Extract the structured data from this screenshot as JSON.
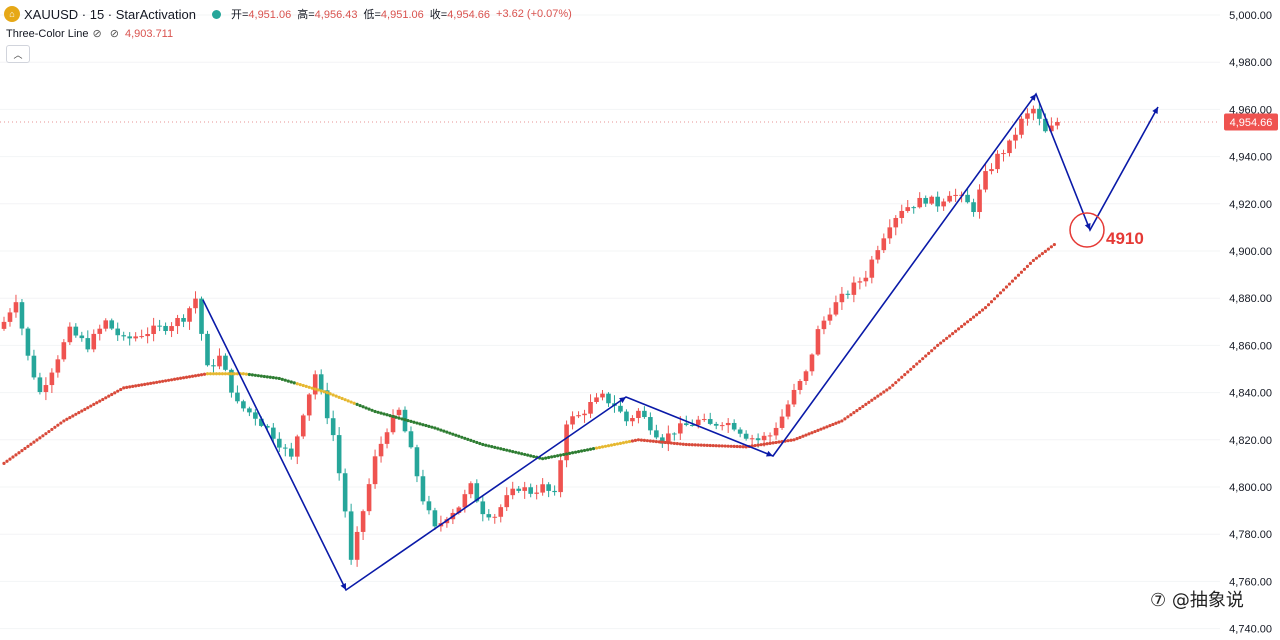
{
  "header": {
    "symbol": "XAUUSD · 15 · StarActivation",
    "logo_glyph": "⌂",
    "open_label": "开=",
    "open_value": "4,951.06",
    "high_label": "高=",
    "high_value": "4,956.43",
    "low_label": "低=",
    "low_value": "4,951.06",
    "close_label": "收=",
    "close_value": "4,954.66",
    "change": "+3.62 (+0.07%)"
  },
  "indicator": {
    "name": "Three-Color Line",
    "icon1": "⊘",
    "icon2": "⊘",
    "value": "4,903.711"
  },
  "collapse_glyph": "︿",
  "annotation_label": "4910",
  "watermark": "⑦ @抽象说",
  "colors": {
    "up": "#26a69a",
    "down": "#ef5350",
    "wave": "#0a1aa8",
    "circle": "#e53935",
    "green_dot": "#2e7d32",
    "yellow_dot": "#e6b830",
    "red_dot": "#d84a3a"
  },
  "chart_data": {
    "type": "candlestick",
    "yaxis_ticks": [
      "5,000.00",
      "4,980.00",
      "4,960.00",
      "4,940.00",
      "4,920.00",
      "4,900.00",
      "4,880.00",
      "4,860.00",
      "4,840.00",
      "4,820.00",
      "4,800.00",
      "4,780.00",
      "4,760.00",
      "4,740.00"
    ],
    "ylim": [
      4740,
      5000
    ],
    "last_price": 4954.66,
    "last_price_label": "4,954.66",
    "anchors": [
      [
        0,
        4870
      ],
      [
        2,
        4880
      ],
      [
        4,
        4855
      ],
      [
        6,
        4840
      ],
      [
        8,
        4850
      ],
      [
        11,
        4866
      ],
      [
        14,
        4860
      ],
      [
        17,
        4870
      ],
      [
        20,
        4862
      ],
      [
        23,
        4865
      ],
      [
        27,
        4868
      ],
      [
        30,
        4872
      ],
      [
        32,
        4880
      ],
      [
        34,
        4850
      ],
      [
        36,
        4855
      ],
      [
        39,
        4835
      ],
      [
        42,
        4830
      ],
      [
        45,
        4822
      ],
      [
        48,
        4812
      ],
      [
        50,
        4832
      ],
      [
        52,
        4848
      ],
      [
        55,
        4822
      ],
      [
        57,
        4790
      ],
      [
        58,
        4768
      ],
      [
        60,
        4790
      ],
      [
        62,
        4812
      ],
      [
        64,
        4825
      ],
      [
        66,
        4832
      ],
      [
        68,
        4815
      ],
      [
        70,
        4795
      ],
      [
        72,
        4782
      ],
      [
        74,
        4788
      ],
      [
        76,
        4792
      ],
      [
        78,
        4800
      ],
      [
        80,
        4790
      ],
      [
        82,
        4788
      ],
      [
        84,
        4795
      ],
      [
        86,
        4800
      ],
      [
        88,
        4798
      ],
      [
        90,
        4800
      ],
      [
        92,
        4796
      ],
      [
        94,
        4828
      ],
      [
        96,
        4830
      ],
      [
        98,
        4835
      ],
      [
        100,
        4838
      ],
      [
        102,
        4835
      ],
      [
        104,
        4828
      ],
      [
        106,
        4832
      ],
      [
        108,
        4826
      ],
      [
        110,
        4820
      ],
      [
        112,
        4824
      ],
      [
        114,
        4826
      ],
      [
        116,
        4828
      ],
      [
        118,
        4826
      ],
      [
        120,
        4828
      ],
      [
        122,
        4826
      ],
      [
        124,
        4822
      ],
      [
        126,
        4820
      ],
      [
        128,
        4822
      ],
      [
        130,
        4830
      ],
      [
        132,
        4840
      ],
      [
        134,
        4848
      ],
      [
        136,
        4866
      ],
      [
        138,
        4875
      ],
      [
        140,
        4880
      ],
      [
        142,
        4885
      ],
      [
        144,
        4890
      ],
      [
        146,
        4902
      ],
      [
        148,
        4912
      ],
      [
        150,
        4918
      ],
      [
        152,
        4920
      ],
      [
        154,
        4922
      ],
      [
        156,
        4920
      ],
      [
        158,
        4925
      ],
      [
        160,
        4922
      ],
      [
        162,
        4918
      ],
      [
        164,
        4932
      ],
      [
        166,
        4940
      ],
      [
        168,
        4945
      ],
      [
        170,
        4955
      ],
      [
        172,
        4960
      ],
      [
        174,
        4950
      ],
      [
        175,
        4952
      ],
      [
        176,
        4954.66
      ]
    ],
    "line_anchors": [
      [
        0,
        4810
      ],
      [
        10,
        4828
      ],
      [
        20,
        4842
      ],
      [
        34,
        4848
      ],
      [
        40,
        4848
      ],
      [
        46,
        4846
      ],
      [
        54,
        4840
      ],
      [
        62,
        4832
      ],
      [
        72,
        4825
      ],
      [
        80,
        4818
      ],
      [
        90,
        4812
      ],
      [
        98,
        4816
      ],
      [
        106,
        4820
      ],
      [
        114,
        4818
      ],
      [
        124,
        4817
      ],
      [
        132,
        4820
      ],
      [
        140,
        4828
      ],
      [
        148,
        4842
      ],
      [
        156,
        4860
      ],
      [
        164,
        4876
      ],
      [
        172,
        4896
      ],
      [
        176,
        4903.7
      ]
    ],
    "line_colors": [
      [
        0,
        33,
        "red"
      ],
      [
        33,
        40,
        "yellow"
      ],
      [
        40,
        48,
        "green"
      ],
      [
        48,
        58,
        "yellow"
      ],
      [
        58,
        69,
        "green"
      ],
      [
        69,
        90,
        "green"
      ],
      [
        90,
        98,
        "green"
      ],
      [
        98,
        104,
        "yellow"
      ],
      [
        104,
        176,
        "red"
      ]
    ],
    "wave_path": [
      [
        203,
        300
      ],
      [
        346,
        590
      ],
      [
        626,
        397
      ],
      [
        773,
        456
      ],
      [
        1036,
        94
      ],
      [
        1090,
        230
      ],
      [
        1158,
        107
      ]
    ],
    "circle": {
      "cx": 1087,
      "cy": 230,
      "r": 17
    }
  }
}
